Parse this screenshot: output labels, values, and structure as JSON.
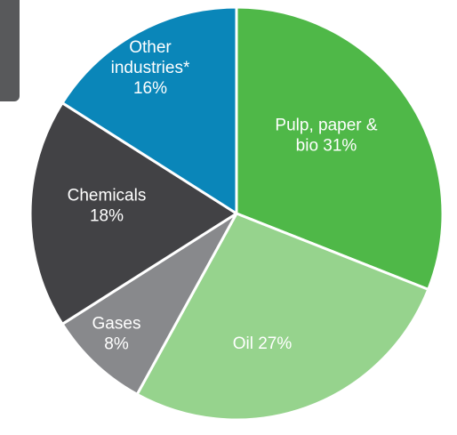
{
  "chart_data": {
    "type": "pie",
    "slices": [
      {
        "name": "Pulp, paper & bio",
        "value": 31,
        "color": "#4fb848",
        "label_lines": [
          "Pulp, paper &",
          "bio 31%"
        ]
      },
      {
        "name": "Oil",
        "value": 27,
        "color": "#96d38d",
        "label_lines": [
          "Oil 27%"
        ]
      },
      {
        "name": "Gases",
        "value": 8,
        "color": "#88898c",
        "label_lines": [
          "Gases",
          "8%"
        ]
      },
      {
        "name": "Chemicals",
        "value": 18,
        "color": "#424245",
        "label_lines": [
          "Chemicals",
          "18%"
        ]
      },
      {
        "name": "Other industries*",
        "value": 16,
        "color": "#0a86b9",
        "label_lines": [
          "Other",
          "industries*",
          "16%"
        ]
      }
    ],
    "start": "top",
    "direction": "clockwise"
  }
}
